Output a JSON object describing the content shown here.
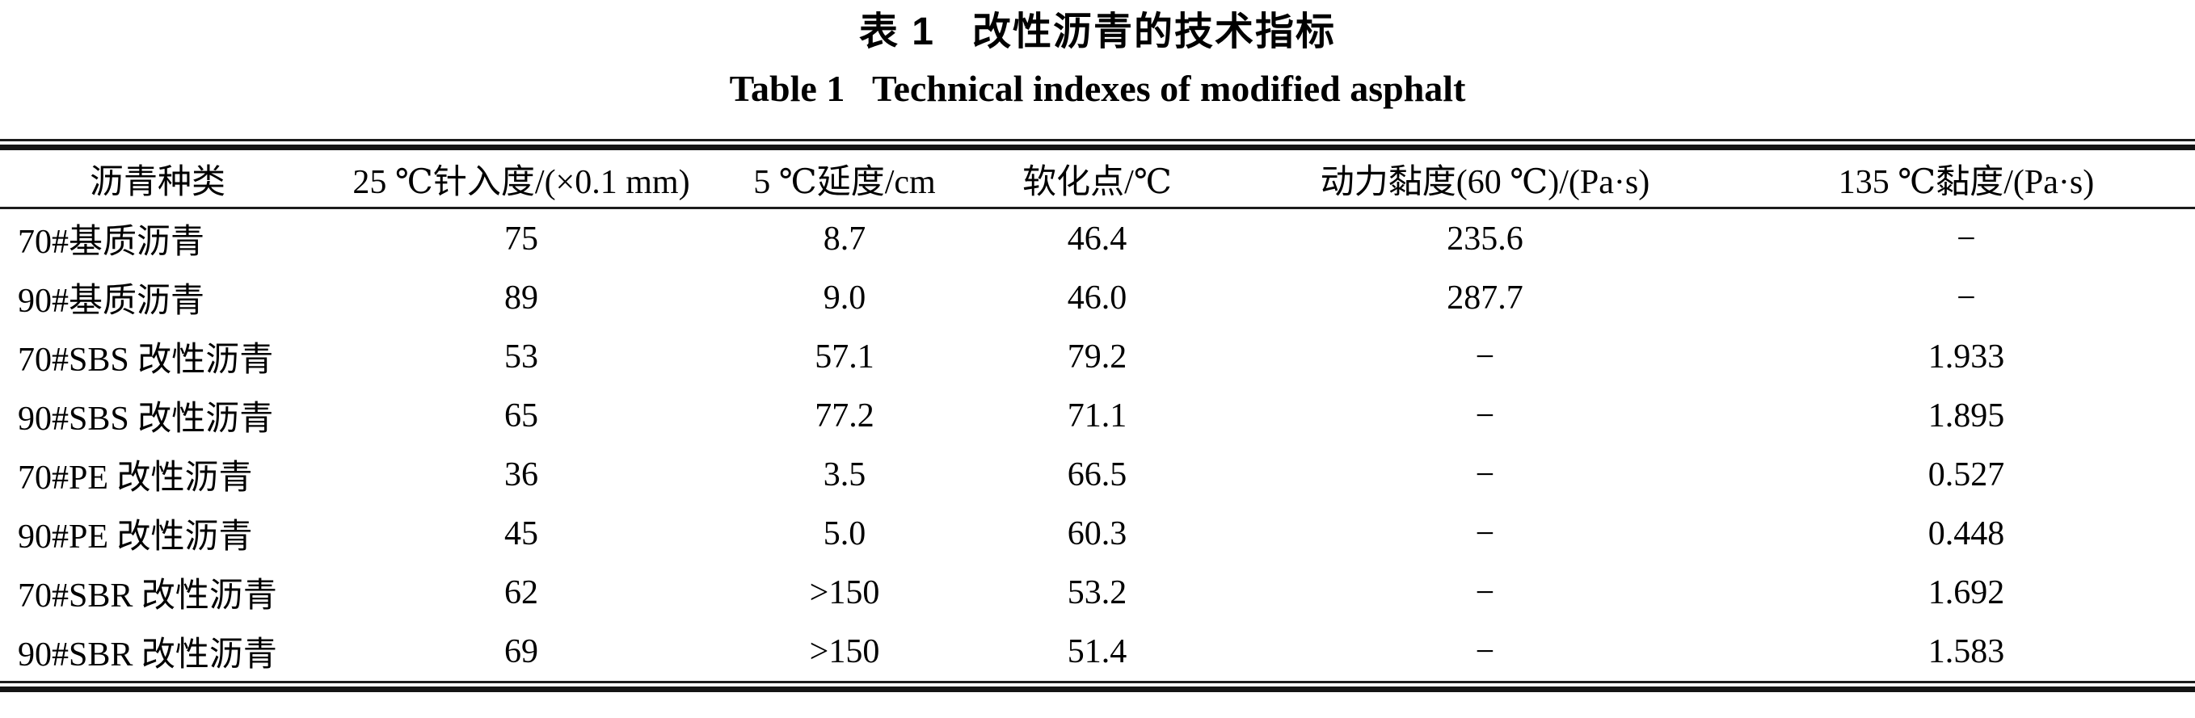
{
  "page": {
    "title_zh": "表 1   改性沥青的技术指标",
    "title_en": "Table 1   Technical indexes of modified asphalt"
  },
  "colors": {
    "text": "#000000",
    "rule": "#1c1c1c",
    "background": "#ffffff"
  },
  "table": {
    "columns": [
      "沥青种类",
      "25 ℃针入度/(×0.1 mm)",
      "5 ℃延度/cm",
      "软化点/℃",
      "动力黏度(60 ℃)/(Pa·s)",
      "135 ℃黏度/(Pa·s)"
    ],
    "rows": [
      [
        "70#基质沥青",
        "75",
        "8.7",
        "46.4",
        "235.6",
        "−"
      ],
      [
        "90#基质沥青",
        "89",
        "9.0",
        "46.0",
        "287.7",
        "−"
      ],
      [
        "70#SBS 改性沥青",
        "53",
        "57.1",
        "79.2",
        "−",
        "1.933"
      ],
      [
        "90#SBS 改性沥青",
        "65",
        "77.2",
        "71.1",
        "−",
        "1.895"
      ],
      [
        "70#PE 改性沥青",
        "36",
        "3.5",
        "66.5",
        "−",
        "0.527"
      ],
      [
        "90#PE 改性沥青",
        "45",
        "5.0",
        "60.3",
        "−",
        "0.448"
      ],
      [
        "70#SBR 改性沥青",
        "62",
        ">150",
        "53.2",
        "−",
        "1.692"
      ],
      [
        "90#SBR 改性沥青",
        "69",
        ">150",
        "51.4",
        "−",
        "1.583"
      ]
    ]
  }
}
